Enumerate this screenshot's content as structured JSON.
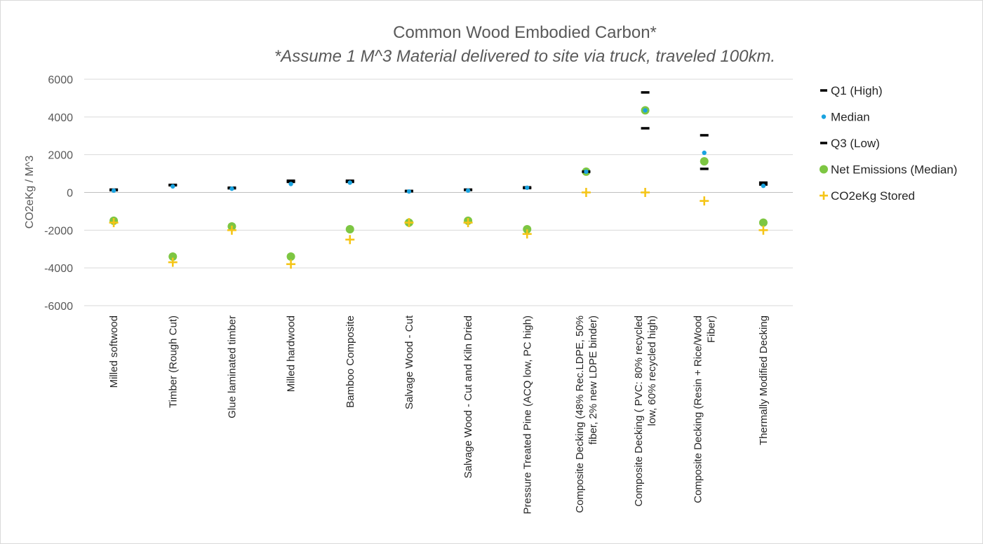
{
  "chart_data": {
    "type": "scatter",
    "title": "Common Wood Embodied Carbon*",
    "subtitle": "*Assume 1 M^3 Material delivered to site via truck, traveled 100km.",
    "ylabel": "CO2eKg / M^3",
    "xlabel": "",
    "ylim": [
      -6000,
      6000
    ],
    "yticks": [
      6000,
      4000,
      2000,
      0,
      -2000,
      -4000,
      -6000
    ],
    "grid": true,
    "legend_position": "right",
    "categories": [
      [
        "Milled softwood"
      ],
      [
        "Timber (Rough Cut)"
      ],
      [
        "Glue laminated timber"
      ],
      [
        "Milled hardwood"
      ],
      [
        "Bamboo Composite"
      ],
      [
        "Salvage Wood - Cut"
      ],
      [
        "Salvage Wood - Cut and Kiln Dried"
      ],
      [
        "Pressure Treated Pine (ACQ low, PC high)"
      ],
      [
        "Composite Decking (48% Rec.LDPE, 50%",
        "fiber, 2% new LDPE binder)"
      ],
      [
        "Composite Decking ( PVC: 80% recycled",
        "low, 60% recycled high)"
      ],
      [
        "Composite Decking (Resin + Rice/Wood",
        "Fiber)"
      ],
      [
        "Thermally Modified Decking"
      ]
    ],
    "series": [
      {
        "name": "Q1 (High)",
        "marker": "dash",
        "color": "#000000",
        "values": [
          150,
          400,
          250,
          620,
          620,
          80,
          150,
          270,
          1100,
          5300,
          3030,
          520
        ]
      },
      {
        "name": "Median",
        "marker": "small-dot",
        "color": "#1aa3e0",
        "values": [
          100,
          320,
          200,
          450,
          520,
          50,
          100,
          250,
          1100,
          4350,
          2100,
          350
        ]
      },
      {
        "name": "Q3 (Low)",
        "marker": "dash",
        "color": "#000000",
        "values": [
          120,
          380,
          220,
          560,
          560,
          60,
          130,
          230,
          1100,
          3400,
          1250,
          420
        ]
      },
      {
        "name": "Net Emissions (Median)",
        "marker": "large-dot",
        "color": "#7dc642",
        "values": [
          -1500,
          -3400,
          -1800,
          -3400,
          -1950,
          -1600,
          -1500,
          -1950,
          1100,
          4350,
          1650,
          -1600
        ]
      },
      {
        "name": "CO2eKg Stored",
        "marker": "plus",
        "color": "#f5c518",
        "values": [
          -1600,
          -3700,
          -2000,
          -3800,
          -2500,
          -1600,
          -1600,
          -2200,
          0,
          0,
          -450,
          -2000
        ]
      }
    ]
  }
}
